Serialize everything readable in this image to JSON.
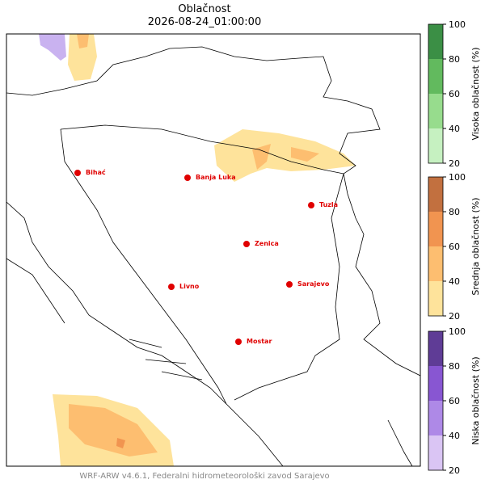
{
  "title": "Oblačnost",
  "subtitle": "2026-08-24_01:00:00",
  "cities": [
    "Bihać",
    "Banja Luka",
    "Tuzla",
    "Zenica",
    "Livno",
    "Sarajevo",
    "Mostar"
  ],
  "colorbars": [
    {
      "label": "Visoka oblačnost (%)",
      "ticks": [
        20,
        40,
        60,
        80,
        100
      ],
      "colors": [
        "#c6f1c1",
        "#97dc8d",
        "#62ba5e",
        "#3b8f45"
      ]
    },
    {
      "label": "Srednja oblačnost (%)",
      "ticks": [
        20,
        40,
        60,
        80,
        100
      ],
      "colors": [
        "#fee39b",
        "#fdbe70",
        "#f19450",
        "#c2703f"
      ]
    },
    {
      "label": "Niska oblačnost (%)",
      "ticks": [
        20,
        40,
        60,
        80,
        100
      ],
      "colors": [
        "#dac5f4",
        "#ae89e7",
        "#8856d2",
        "#5f3c96"
      ]
    }
  ],
  "footer": "WRF-ARW v4.6.1, Federalni hidrometeorološki zavod Sarajevo"
}
